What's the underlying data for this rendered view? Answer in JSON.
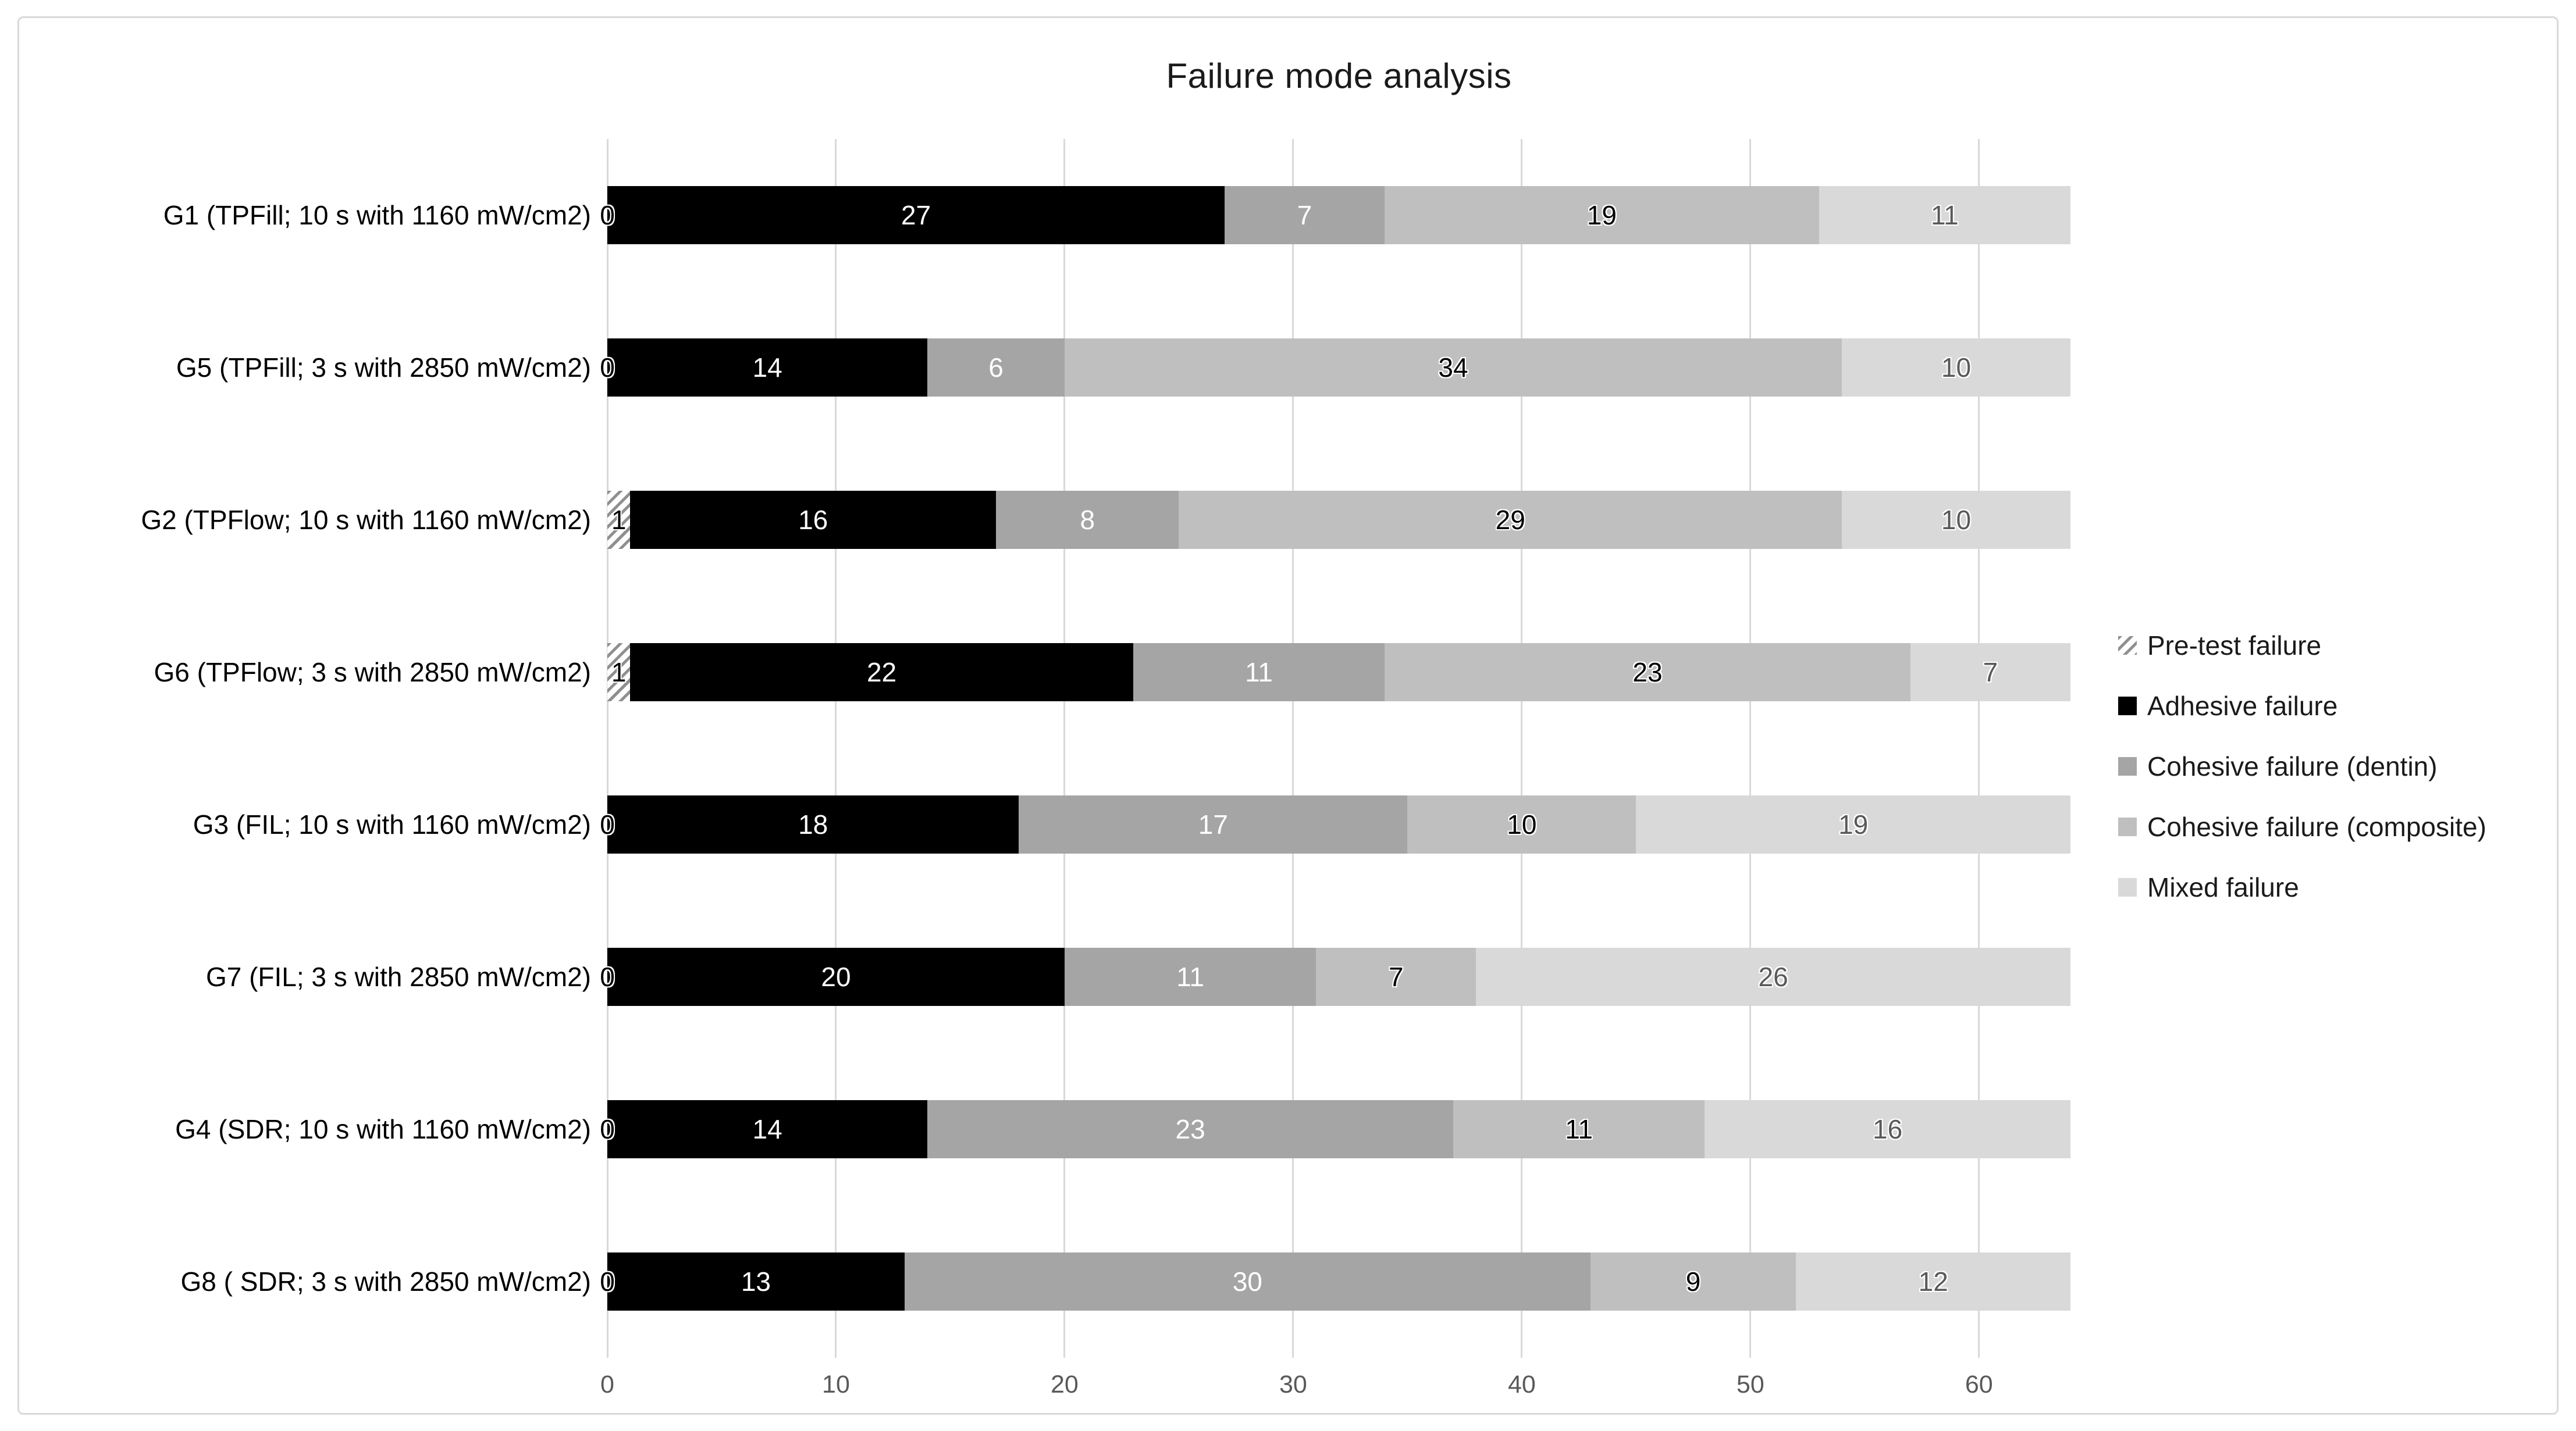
{
  "figure": {
    "title": "Failure mode analysis"
  },
  "chart_data": {
    "type": "bar",
    "orientation": "horizontal-stacked",
    "title": "Failure mode analysis",
    "categories": [
      "G1 (TPFill; 10 s with 1160 mW/cm2)",
      "G5 (TPFill; 3 s with 2850 mW/cm2)",
      "G2 (TPFlow; 10 s with 1160 mW/cm2)",
      "G6 (TPFlow; 3 s with 2850 mW/cm2)",
      "G3 (FIL; 10 s with 1160 mW/cm2)",
      "G7 (FIL; 3 s with 2850 mW/cm2)",
      "G4 (SDR; 10 s with 1160 mW/cm2)",
      "G8 ( SDR; 3 s with 2850 mW/cm2)"
    ],
    "series": [
      {
        "name": "Pre-test failure",
        "swatch": "hatch",
        "color": "hatch",
        "label_color": "#000000",
        "values": [
          0,
          0,
          1,
          1,
          0,
          0,
          0,
          0
        ]
      },
      {
        "name": "Adhesive failure",
        "swatch": "solid",
        "color": "#000000",
        "label_color": "#ffffff",
        "values": [
          27,
          14,
          16,
          22,
          18,
          20,
          14,
          13
        ]
      },
      {
        "name": "Cohesive failure (dentin)",
        "swatch": "solid",
        "color": "#a5a5a5",
        "label_color": "#ffffff",
        "values": [
          7,
          6,
          8,
          11,
          17,
          11,
          23,
          30
        ]
      },
      {
        "name": "Cohesive failure (composite)",
        "swatch": "solid",
        "color": "#bfbfbf",
        "label_color": "#000000",
        "values": [
          19,
          34,
          29,
          23,
          10,
          7,
          11,
          9
        ]
      },
      {
        "name": "Mixed failure",
        "swatch": "solid",
        "color": "#d9d9d9",
        "label_color": "#595959",
        "values": [
          11,
          10,
          10,
          7,
          19,
          26,
          16,
          12
        ]
      }
    ],
    "x_ticks": [
      0,
      10,
      20,
      30,
      40,
      50,
      60
    ],
    "xlim": [
      0,
      64
    ],
    "grid": true,
    "legend_position": "right",
    "gridline_color": "#d9d9d9",
    "tick_label_color": "#595959",
    "category_totals": [
      64,
      64,
      64,
      64,
      64,
      64,
      64,
      64
    ]
  }
}
